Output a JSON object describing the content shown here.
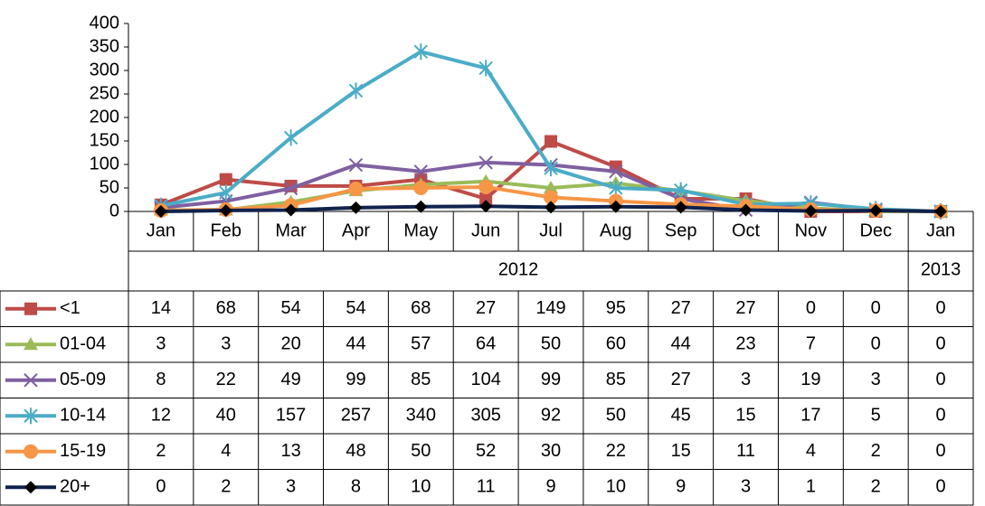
{
  "chart_data": {
    "type": "line",
    "categories": [
      "Jan",
      "Feb",
      "Mar",
      "Apr",
      "May",
      "Jun",
      "Jul",
      "Aug",
      "Sep",
      "Oct",
      "Nov",
      "Dec",
      "Jan"
    ],
    "years": [
      "2012",
      "2013"
    ],
    "ylim": [
      0,
      400
    ],
    "yticks": [
      0,
      50,
      100,
      150,
      200,
      250,
      300,
      350,
      400
    ],
    "grid": false,
    "series": [
      {
        "name": "<1",
        "color": "#be4b48",
        "marker": "square",
        "values": [
          14,
          68,
          54,
          54,
          68,
          27,
          149,
          95,
          27,
          27,
          0,
          0,
          0
        ]
      },
      {
        "name": "01-04",
        "color": "#9bbb59",
        "marker": "triangle",
        "values": [
          3,
          3,
          20,
          44,
          57,
          64,
          50,
          60,
          44,
          23,
          7,
          0,
          0
        ]
      },
      {
        "name": "05-09",
        "color": "#7f60a0",
        "marker": "x",
        "values": [
          8,
          22,
          49,
          99,
          85,
          104,
          99,
          85,
          27,
          3,
          19,
          3,
          0
        ]
      },
      {
        "name": "10-14",
        "color": "#4bacc6",
        "marker": "star",
        "values": [
          12,
          40,
          157,
          257,
          340,
          305,
          92,
          50,
          45,
          15,
          17,
          5,
          0
        ]
      },
      {
        "name": "15-19",
        "color": "#f79646",
        "marker": "circle",
        "values": [
          2,
          4,
          13,
          48,
          50,
          52,
          30,
          22,
          15,
          11,
          4,
          2,
          0
        ]
      },
      {
        "name": "20+",
        "color": "#10224e",
        "marker": "diamond",
        "values": [
          0,
          2,
          3,
          8,
          10,
          11,
          9,
          10,
          9,
          3,
          1,
          2,
          0
        ]
      }
    ]
  }
}
